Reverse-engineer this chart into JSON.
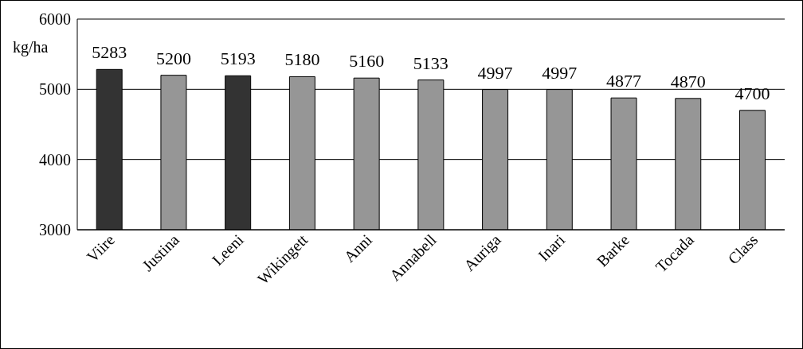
{
  "chart_data": {
    "type": "bar",
    "ylabel": "kg/ha",
    "categories": [
      "Viire",
      "Justina",
      "Leeni",
      "Wikingett",
      "Anni",
      "Annabell",
      "Auriga",
      "Inari",
      "Barke",
      "Tocada",
      "Class"
    ],
    "values": [
      5283,
      5200,
      5193,
      5180,
      5160,
      5133,
      4997,
      4997,
      4877,
      4870,
      4700
    ],
    "colors": [
      "#333333",
      "#969696",
      "#333333",
      "#969696",
      "#969696",
      "#969696",
      "#969696",
      "#969696",
      "#969696",
      "#969696",
      "#969696"
    ],
    "ylim": [
      3000,
      6000
    ],
    "yticks": [
      3000,
      4000,
      5000,
      6000
    ],
    "grid": "y",
    "data_labels": true
  }
}
